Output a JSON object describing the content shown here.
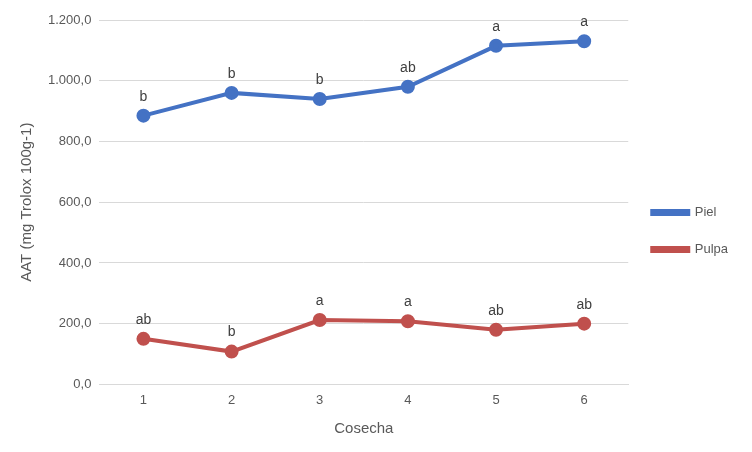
{
  "chart_data": {
    "type": "line",
    "x_label": "Cosecha",
    "y_label": "AAT (mg Trolox 100g-1)",
    "categories": [
      "1",
      "2",
      "3",
      "4",
      "5",
      "6"
    ],
    "series": [
      {
        "name": "Piel",
        "color": "#4472c4",
        "marker": "circle",
        "values": [
          885,
          960,
          940,
          980,
          1115,
          1130
        ],
        "letters": [
          "b",
          "b",
          "b",
          "ab",
          "a",
          "a"
        ]
      },
      {
        "name": "Pulpa",
        "color": "#c0504d",
        "marker": "circle",
        "values": [
          150,
          108,
          212,
          208,
          180,
          200
        ],
        "letters": [
          "ab",
          "b",
          "a",
          "a",
          "ab",
          "ab"
        ]
      }
    ],
    "ylim": [
      0,
      1200
    ],
    "yticks": [
      {
        "value": 0,
        "label": "0,0"
      },
      {
        "value": 200,
        "label": "200,0"
      },
      {
        "value": 400,
        "label": "400,0"
      },
      {
        "value": 600,
        "label": "600,0"
      },
      {
        "value": 800,
        "label": "800,0"
      },
      {
        "value": 1000,
        "label": "1.000,0"
      },
      {
        "value": 1200,
        "label": "1.200,0"
      }
    ],
    "grid": true,
    "legend": "right"
  }
}
